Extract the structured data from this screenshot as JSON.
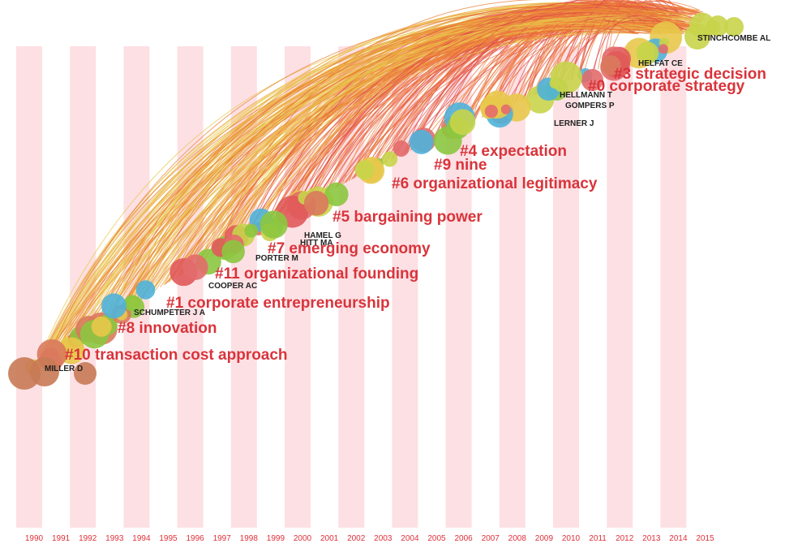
{
  "years": [
    "1990",
    "1991",
    "1992",
    "1993",
    "1994",
    "1995",
    "1996",
    "1997",
    "1998",
    "1999",
    "2000",
    "2001",
    "2002",
    "2003",
    "2004",
    "2005",
    "2006",
    "2007",
    "2008",
    "2009",
    "2010",
    "2011",
    "2012",
    "2013",
    "2014",
    "2015"
  ],
  "clusters": [
    "#10 transaction cost approach",
    "#8 innovation",
    "#1 corporate entrepreneurship",
    "#11 organizational founding",
    "#7 emerging economy",
    "#5 bargaining power",
    "#6 organizational legitimacy",
    "#9 nine",
    "#4 expectation",
    "#0 corporate strategy",
    "#3 strategic decision"
  ],
  "authors": [
    "MILLER D",
    "SCHUMPETER J A",
    "COOPER AC",
    "PORTER M",
    "HITT MA",
    "HAMEL G",
    "LERNER J",
    "GOMPERS P",
    "HELLMANN T",
    "HELFAT CE",
    "STINCHCOMBE AL"
  ]
}
